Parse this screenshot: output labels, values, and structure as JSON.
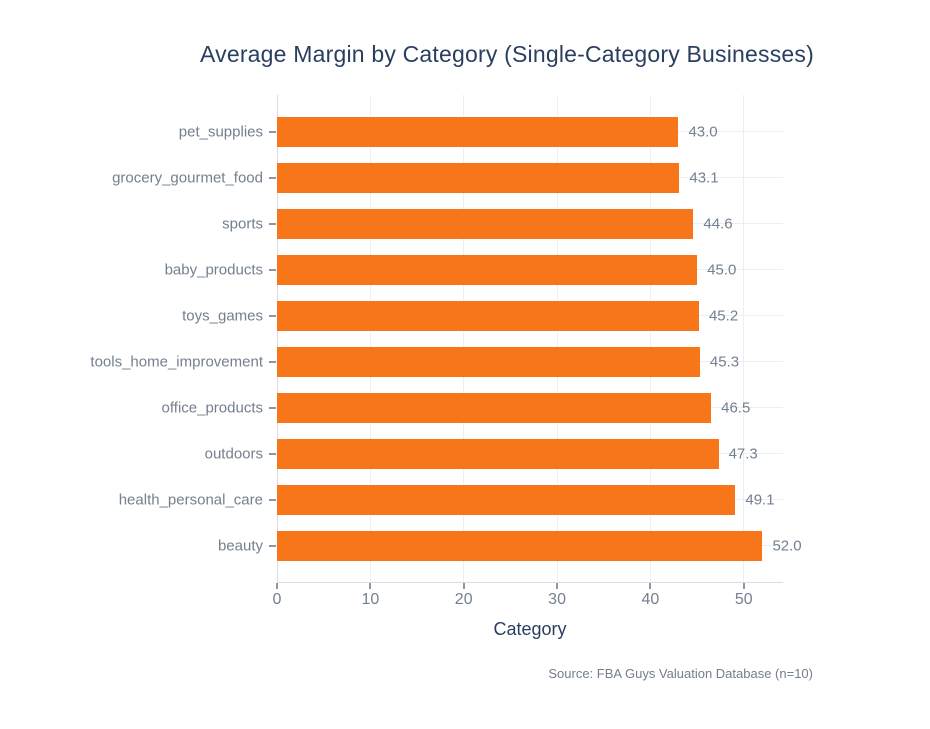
{
  "chart_data": {
    "type": "bar",
    "orientation": "horizontal",
    "title": "Average Margin by Category (Single-Category Businesses)",
    "categories": [
      "pet_supplies",
      "grocery_gourmet_food",
      "sports",
      "baby_products",
      "toys_games",
      "tools_home_improvement",
      "office_products",
      "outdoors",
      "health_personal_care",
      "beauty"
    ],
    "values": [
      43.0,
      43.1,
      44.6,
      45.0,
      45.2,
      45.3,
      46.5,
      47.3,
      49.1,
      52.0
    ],
    "value_labels": [
      "43.0",
      "43.1",
      "44.6",
      "45.0",
      "45.2",
      "45.3",
      "46.5",
      "47.3",
      "49.1",
      "52.0"
    ],
    "xlabel": "Category",
    "ylabel": "",
    "xlim": [
      0,
      54.2
    ],
    "xticks": [
      0,
      10,
      20,
      30,
      40,
      50
    ],
    "xtick_labels": [
      "0",
      "10",
      "20",
      "30",
      "40",
      "50"
    ],
    "grid": true,
    "legend": "none",
    "source_note": "Source: FBA Guys Valuation Database (n=10)",
    "colors": {
      "bar": "#F7761A",
      "title_text": "#2A3F5F",
      "axis_title_text": "#2A3F5F",
      "tick_text": "#74808F",
      "value_label_text": "#74808F",
      "source_text": "#747E8C",
      "gridline": "#ECEEF3",
      "axis_line": "#D8DCE3",
      "tick_mark": "#8D97A5",
      "background": "#FFFFFF"
    }
  }
}
